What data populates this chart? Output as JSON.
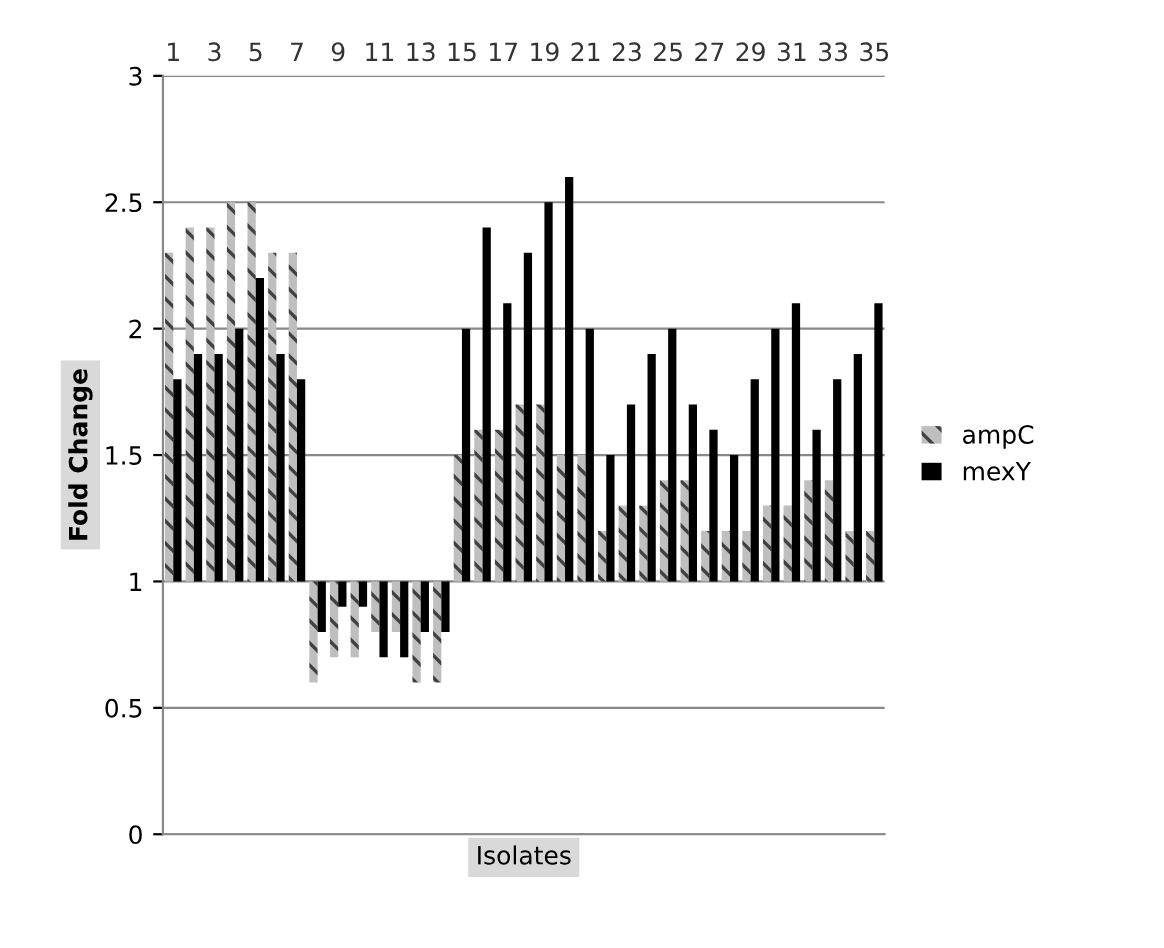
{
  "chart_data": {
    "type": "bar",
    "xlabel": "Isolates",
    "ylabel": "Fold Change",
    "categories": [
      "1",
      null,
      "3",
      null,
      "5",
      null,
      "7",
      null,
      "9",
      null,
      "11",
      null,
      "13",
      null,
      "15",
      null,
      "17",
      null,
      "19",
      null,
      "21",
      null,
      "23",
      null,
      "25",
      null,
      "27",
      null,
      "29",
      null,
      "31",
      null,
      "33",
      null,
      "35"
    ],
    "series": [
      {
        "name": "ampC",
        "color": "#bfbfbf",
        "base": [
          1,
          1,
          1,
          1,
          1,
          1,
          1,
          1,
          1,
          1,
          1,
          1,
          1,
          1,
          1,
          1,
          1,
          1,
          1,
          1,
          1,
          1,
          1,
          1,
          1,
          1,
          1,
          1,
          1,
          1,
          1,
          1,
          1,
          1,
          1
        ],
        "values": [
          1.3,
          1.4,
          1.4,
          1.5,
          1.5,
          1.3,
          1.3,
          -0.4,
          -0.3,
          -0.3,
          -0.2,
          -0.2,
          -0.4,
          -0.4,
          0.5,
          0.6,
          0.6,
          0.7,
          0.7,
          0.5,
          0.5,
          0.2,
          0.3,
          0.3,
          0.4,
          0.4,
          0.2,
          0.2,
          0.2,
          0.3,
          0.3,
          0.4,
          0.4,
          0.2,
          0.2
        ]
      },
      {
        "name": "mexY",
        "color": "#000000",
        "base": [
          1,
          1,
          1,
          1,
          1,
          1,
          1,
          1,
          1,
          1,
          1,
          1,
          1,
          1,
          1,
          1,
          1,
          1,
          1,
          1,
          1,
          1,
          1,
          1,
          1,
          1,
          1,
          1,
          1,
          1,
          1,
          1,
          1,
          1,
          1
        ],
        "values": [
          0.8,
          0.9,
          0.9,
          1.0,
          1.2,
          0.9,
          0.8,
          -0.2,
          -0.1,
          -0.1,
          -0.3,
          -0.3,
          -0.2,
          -0.2,
          1.0,
          1.4,
          1.1,
          1.3,
          1.5,
          1.6,
          1.0,
          0.5,
          0.7,
          0.9,
          1.0,
          0.7,
          0.6,
          0.5,
          0.8,
          1.0,
          1.1,
          0.6,
          0.8,
          0.9,
          1.1
        ]
      }
    ],
    "ylim": [
      0,
      3
    ],
    "yticks": [
      0,
      0.5,
      1,
      1.5,
      2,
      2.5,
      3
    ],
    "grid": "y",
    "legend": "right"
  }
}
